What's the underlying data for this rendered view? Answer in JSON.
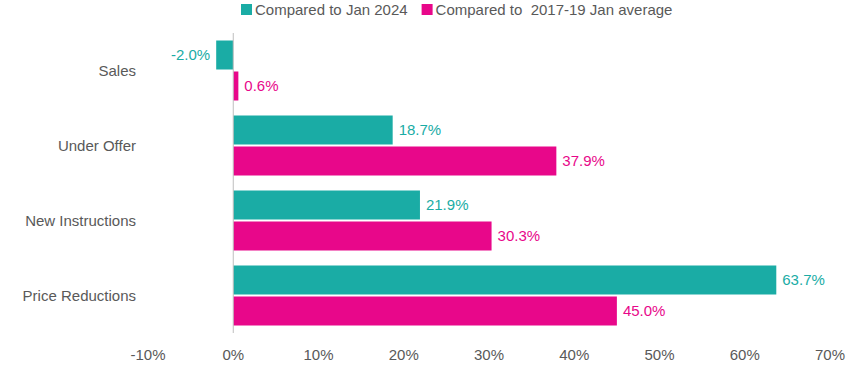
{
  "chart_data": {
    "type": "bar",
    "orientation": "horizontal",
    "data_labels": true,
    "grid": false,
    "legend": "top",
    "categories": [
      "Sales",
      "Under Offer",
      "New Instructions",
      "Price Reductions"
    ],
    "series": [
      {
        "name": "Compared to Jan 2024",
        "color": "#1aaca5",
        "values": [
          -2.0,
          18.7,
          21.9,
          63.7
        ],
        "value_labels": [
          "-2.0%",
          "18.7%",
          "21.9%",
          "63.7%"
        ]
      },
      {
        "name": "Compared to  2017-19 Jan average",
        "color": "#e8078a",
        "values": [
          0.6,
          37.9,
          30.3,
          45.0
        ],
        "value_labels": [
          "0.6%",
          "37.9%",
          "30.3%",
          "45.0%"
        ]
      }
    ],
    "xlim": [
      -10,
      70
    ],
    "xticks": [
      {
        "value": -10,
        "label": "-10%"
      },
      {
        "value": 0,
        "label": "0%"
      },
      {
        "value": 10,
        "label": "10%"
      },
      {
        "value": 20,
        "label": "20%"
      },
      {
        "value": 30,
        "label": "30%"
      },
      {
        "value": 40,
        "label": "40%"
      },
      {
        "value": 50,
        "label": "50%"
      },
      {
        "value": 60,
        "label": "60%"
      },
      {
        "value": 70,
        "label": "70%"
      }
    ]
  }
}
